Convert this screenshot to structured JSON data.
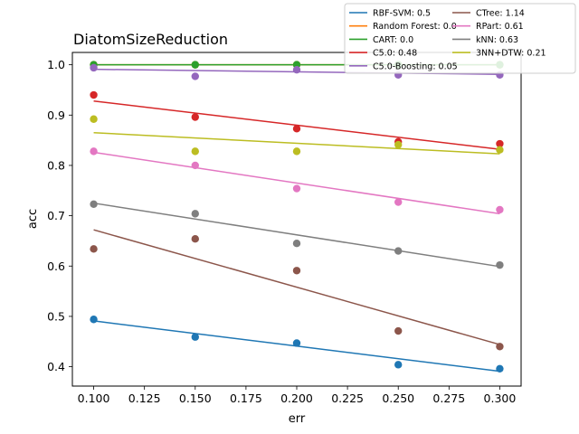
{
  "chart_data": {
    "type": "scatter",
    "title": "DiatomSizeReduction",
    "xlabel": "err",
    "ylabel": "acc",
    "xlim": [
      0.0895,
      0.3105
    ],
    "ylim": [
      0.3615,
      1.0245
    ],
    "xticks": [
      "0.100",
      "0.125",
      "0.150",
      "0.175",
      "0.200",
      "0.225",
      "0.250",
      "0.275",
      "0.300"
    ],
    "yticks": [
      "0.4",
      "0.5",
      "0.6",
      "0.7",
      "0.8",
      "0.9",
      "1.0"
    ],
    "x": [
      0.1,
      0.15,
      0.2,
      0.25,
      0.3
    ],
    "grid": false,
    "legend_position": "top-right, outside plot",
    "series": [
      {
        "name": "RBF-SVM: 0.5",
        "color": "#1f77b4",
        "points": [
          0.494,
          0.459,
          0.447,
          0.404,
          0.396
        ],
        "fit": [
          0.491,
          0.391
        ]
      },
      {
        "name": "Random Forest: 0.0",
        "color": "#ff7f0e",
        "points": [
          1.0,
          1.0,
          1.0,
          1.0,
          1.0
        ],
        "fit": [
          1.0,
          1.0
        ]
      },
      {
        "name": "CART: 0.0",
        "color": "#2ca02c",
        "points": [
          1.0,
          1.0,
          1.0,
          1.0,
          1.0
        ],
        "fit": [
          1.0,
          1.0
        ]
      },
      {
        "name": "C5.0: 0.48",
        "color": "#d62728",
        "points": [
          0.94,
          0.896,
          0.873,
          0.847,
          0.843
        ],
        "fit": [
          0.928,
          0.832
        ]
      },
      {
        "name": "C5.0-Boosting: 0.05",
        "color": "#9467bd",
        "points": [
          0.994,
          0.977,
          0.99,
          0.98,
          0.98
        ],
        "fit": [
          0.991,
          0.981
        ]
      },
      {
        "name": "CTree: 1.14",
        "color": "#8c564b",
        "points": [
          0.634,
          0.654,
          0.591,
          0.471,
          0.44
        ],
        "fit": [
          0.672,
          0.444
        ]
      },
      {
        "name": "RPart: 0.61",
        "color": "#e377c2",
        "points": [
          0.828,
          0.8,
          0.754,
          0.727,
          0.712
        ],
        "fit": [
          0.826,
          0.704
        ]
      },
      {
        "name": "kNN: 0.63",
        "color": "#7f7f7f",
        "points": [
          0.723,
          0.704,
          0.645,
          0.63,
          0.602
        ],
        "fit": [
          0.725,
          0.599
        ]
      },
      {
        "name": "3NN+DTW: 0.21",
        "color": "#bcbd22",
        "points": [
          0.892,
          0.828,
          0.828,
          0.841,
          0.831
        ],
        "fit": [
          0.865,
          0.823
        ]
      }
    ]
  }
}
